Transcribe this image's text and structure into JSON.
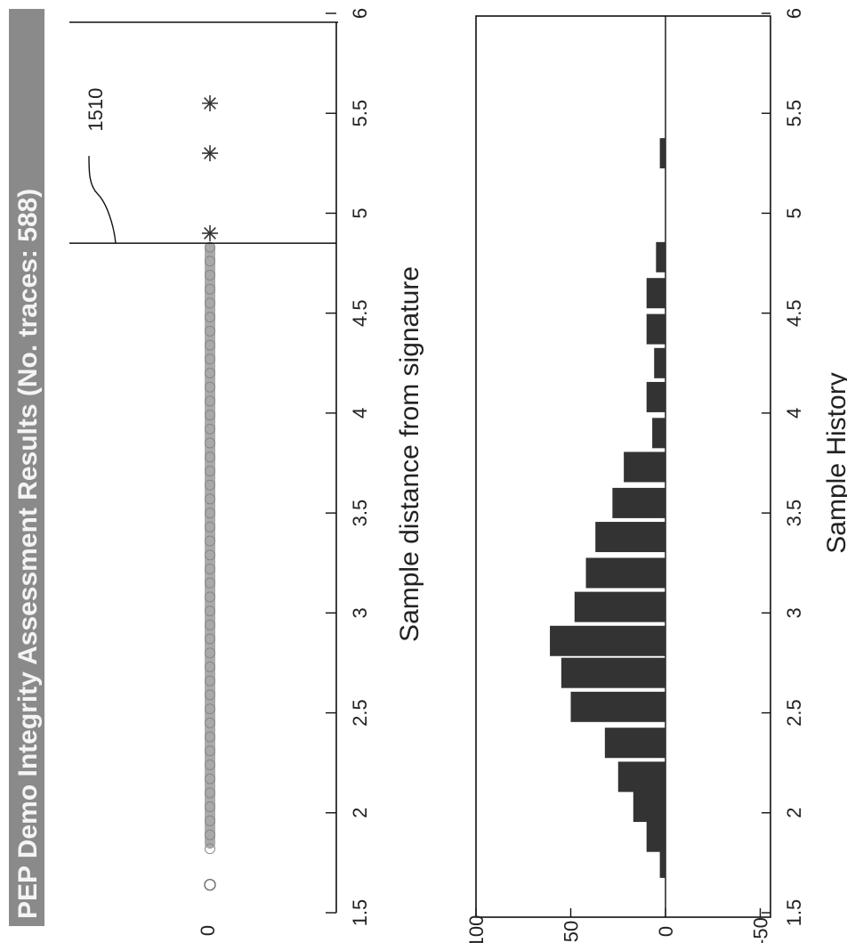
{
  "chart_data": [
    {
      "type": "scatter",
      "title": "PEP Demo Integrity Assessment Results (No. traces: 588)",
      "xlabel": "Sample distance from signature",
      "ylabel": "",
      "xlim": [
        1.5,
        6
      ],
      "x_ticks": [
        "1.5",
        "2",
        "2.5",
        "3",
        "3.5",
        "4",
        "4.5",
        "5",
        "5.5",
        "6"
      ],
      "y_ticks": [
        "0"
      ],
      "threshold": {
        "x": 4.85,
        "label": "1510"
      },
      "series": [
        {
          "marker": "circle",
          "color": "#a9a9a9",
          "x_start": 1.82,
          "x_end": 4.85,
          "y": 0
        },
        {
          "marker": "circle",
          "color": "#a9a9a9",
          "x": [
            1.64
          ],
          "y": [
            0
          ]
        },
        {
          "marker": "asterisk",
          "color": "#333333",
          "x": [
            4.9,
            5.3,
            5.55
          ],
          "y": [
            0,
            0,
            0
          ]
        }
      ]
    },
    {
      "type": "bar",
      "xlabel": "Sample History",
      "ylabel": "",
      "xlim": [
        1.5,
        6
      ],
      "ylim": [
        -50,
        100
      ],
      "x_ticks": [
        "1.5",
        "2",
        "2.5",
        "3",
        "3.5",
        "4",
        "4.5",
        "5",
        "5.5",
        "6"
      ],
      "y_ticks": [
        "-50",
        "0",
        "50",
        "100"
      ],
      "bar_color": "#333333",
      "x": [
        1.75,
        1.88,
        2.03,
        2.18,
        2.35,
        2.53,
        2.7,
        2.86,
        3.03,
        3.2,
        3.38,
        3.55,
        3.73,
        3.9,
        4.08,
        4.25,
        4.42,
        4.6,
        4.78,
        4.95,
        5.3
      ],
      "values": [
        3,
        10,
        17,
        25,
        32,
        50,
        55,
        61,
        48,
        42,
        37,
        28,
        22,
        7,
        10,
        6,
        10,
        10,
        5,
        0,
        3
      ]
    }
  ]
}
